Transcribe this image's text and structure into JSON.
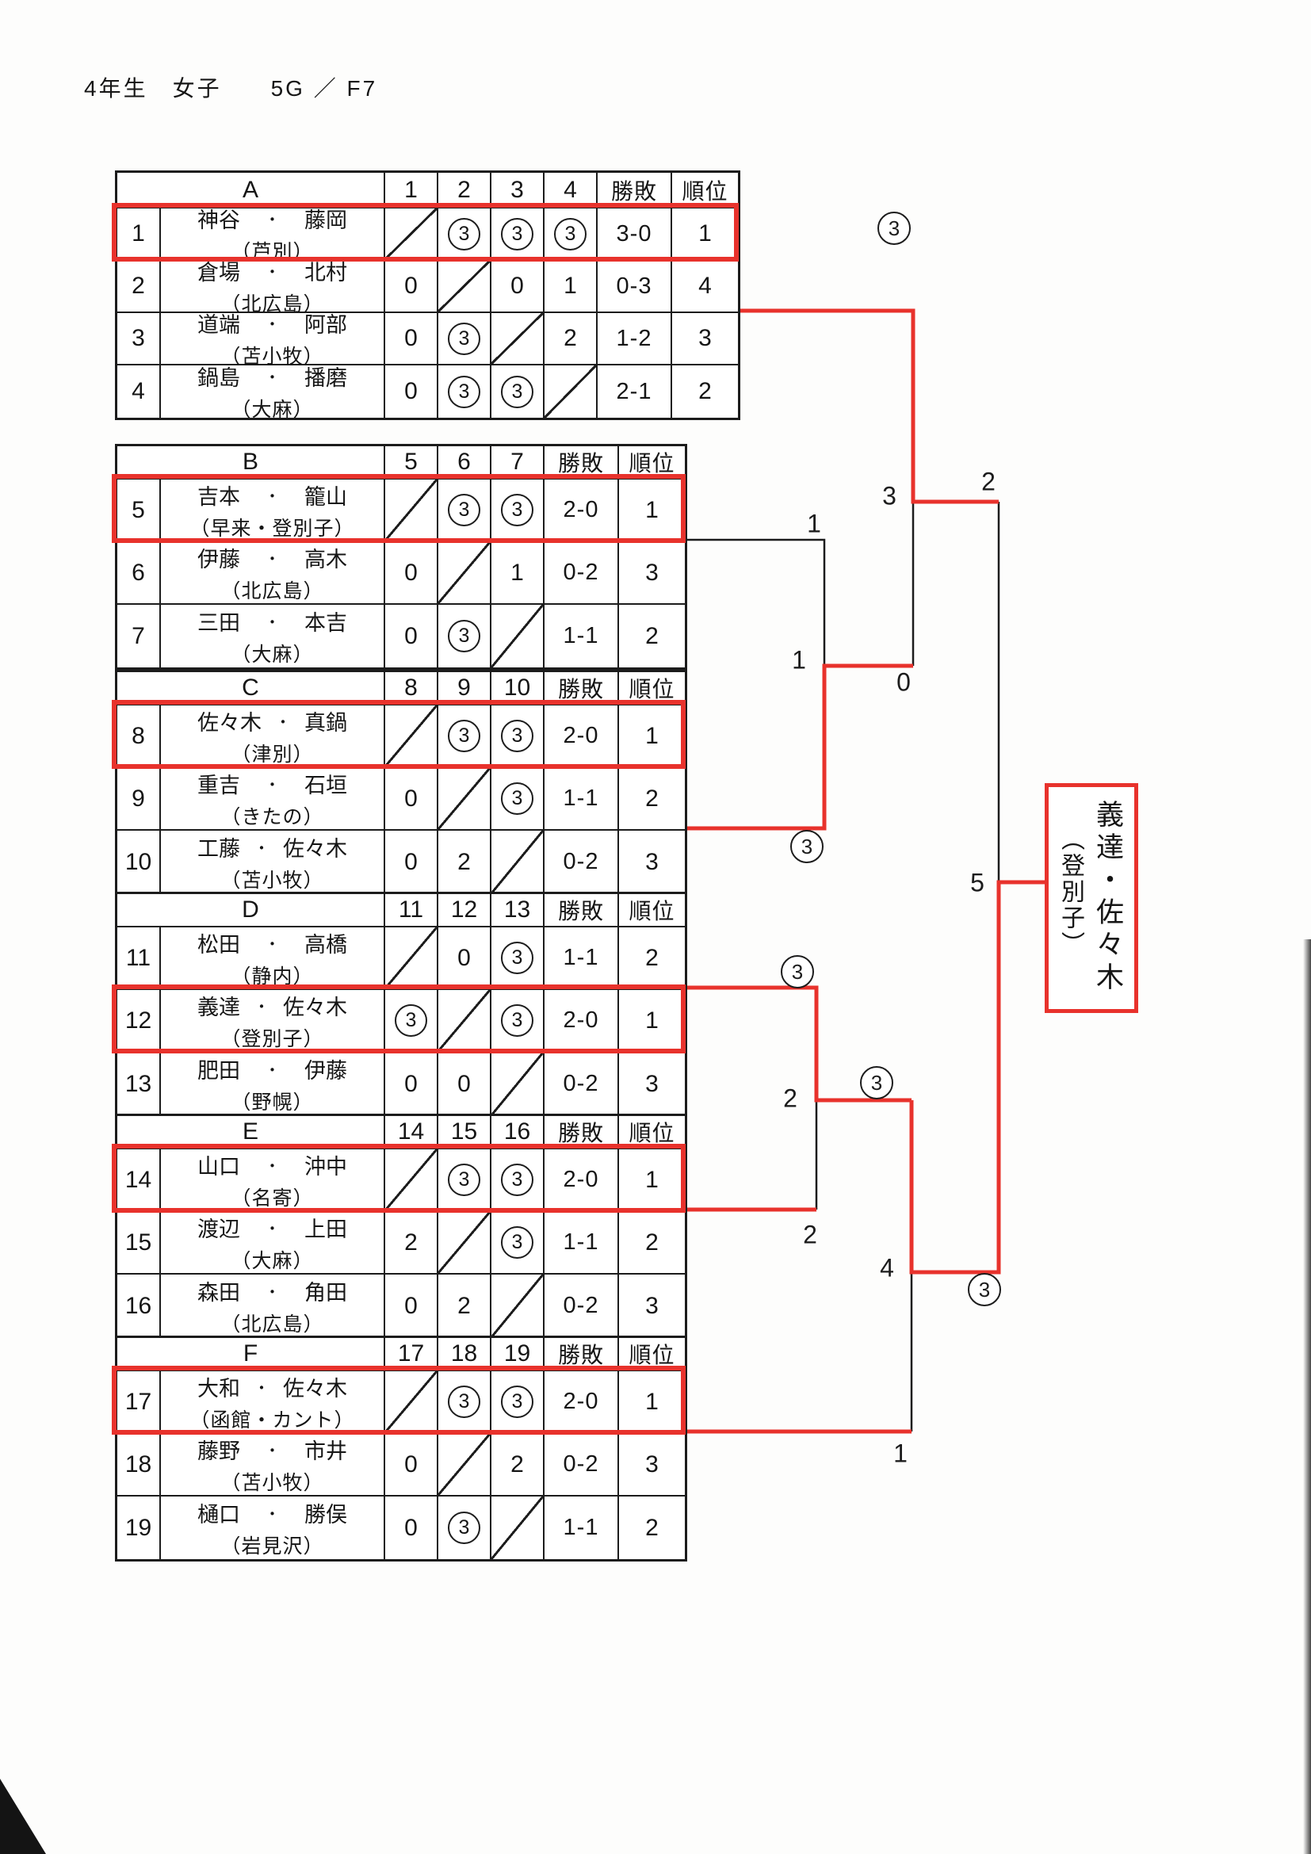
{
  "title": "4年生　女子　　5G ／ F7",
  "headers": {
    "win": "勝敗",
    "rank": "順位"
  },
  "groups": [
    {
      "name": "A",
      "cols": [
        "1",
        "2",
        "3",
        "4"
      ],
      "rows": [
        {
          "no": "1",
          "p1": "神谷",
          "p2": "藤岡",
          "club": "（芦別）",
          "results": [
            "",
            "③",
            "③",
            "③"
          ],
          "win": "3-0",
          "rank": "1",
          "first": true
        },
        {
          "no": "2",
          "p1": "倉場",
          "p2": "北村",
          "club": "（北広島）",
          "results": [
            "0",
            "",
            "0",
            "1"
          ],
          "win": "0-3",
          "rank": "4"
        },
        {
          "no": "3",
          "p1": "道端",
          "p2": "阿部",
          "club": "（苫小牧）",
          "results": [
            "0",
            "③",
            "",
            "2"
          ],
          "win": "1-2",
          "rank": "3"
        },
        {
          "no": "4",
          "p1": "鍋島",
          "p2": "播磨",
          "club": "（大麻）",
          "results": [
            "0",
            "③",
            "③",
            ""
          ],
          "win": "2-1",
          "rank": "2"
        }
      ]
    },
    {
      "name": "B",
      "cols": [
        "5",
        "6",
        "7"
      ],
      "rows": [
        {
          "no": "5",
          "p1": "吉本",
          "p2": "籠山",
          "club": "（早来・登別子）",
          "results": [
            "",
            "③",
            "③"
          ],
          "win": "2-0",
          "rank": "1",
          "first": true
        },
        {
          "no": "6",
          "p1": "伊藤",
          "p2": "高木",
          "club": "（北広島）",
          "results": [
            "0",
            "",
            "1"
          ],
          "win": "0-2",
          "rank": "3"
        },
        {
          "no": "7",
          "p1": "三田",
          "p2": "本吉",
          "club": "（大麻）",
          "results": [
            "0",
            "③",
            ""
          ],
          "win": "1-1",
          "rank": "2"
        }
      ]
    },
    {
      "name": "C",
      "cols": [
        "8",
        "9",
        "10"
      ],
      "rows": [
        {
          "no": "8",
          "p1": "佐々木",
          "p2": "真鍋",
          "club": "（津別）",
          "results": [
            "",
            "③",
            "③"
          ],
          "win": "2-0",
          "rank": "1",
          "first": true
        },
        {
          "no": "9",
          "p1": "重吉",
          "p2": "石垣",
          "club": "（きたの）",
          "results": [
            "0",
            "",
            "③"
          ],
          "win": "1-1",
          "rank": "2"
        },
        {
          "no": "10",
          "p1": "工藤",
          "p2": "佐々木",
          "club": "（苫小牧）",
          "results": [
            "0",
            "2",
            ""
          ],
          "win": "0-2",
          "rank": "3"
        }
      ]
    },
    {
      "name": "D",
      "cols": [
        "11",
        "12",
        "13"
      ],
      "rows": [
        {
          "no": "11",
          "p1": "松田",
          "p2": "高橋",
          "club": "（静内）",
          "results": [
            "",
            "0",
            "③"
          ],
          "win": "1-1",
          "rank": "2"
        },
        {
          "no": "12",
          "p1": "義達",
          "p2": "佐々木",
          "club": "（登別子）",
          "results": [
            "③",
            "",
            "③"
          ],
          "win": "2-0",
          "rank": "1",
          "first": true
        },
        {
          "no": "13",
          "p1": "肥田",
          "p2": "伊藤",
          "club": "（野幌）",
          "results": [
            "0",
            "0",
            ""
          ],
          "win": "0-2",
          "rank": "3"
        }
      ]
    },
    {
      "name": "E",
      "cols": [
        "14",
        "15",
        "16"
      ],
      "rows": [
        {
          "no": "14",
          "p1": "山口",
          "p2": "沖中",
          "club": "（名寄）",
          "results": [
            "",
            "③",
            "③"
          ],
          "win": "2-0",
          "rank": "1",
          "first": true
        },
        {
          "no": "15",
          "p1": "渡辺",
          "p2": "上田",
          "club": "（大麻）",
          "results": [
            "2",
            "",
            "③"
          ],
          "win": "1-1",
          "rank": "2"
        },
        {
          "no": "16",
          "p1": "森田",
          "p2": "角田",
          "club": "（北広島）",
          "results": [
            "0",
            "2",
            ""
          ],
          "win": "0-2",
          "rank": "3"
        }
      ]
    },
    {
      "name": "F",
      "cols": [
        "17",
        "18",
        "19"
      ],
      "rows": [
        {
          "no": "17",
          "p1": "大和",
          "p2": "佐々木",
          "club": "（函館・カント）",
          "results": [
            "",
            "③",
            "③"
          ],
          "win": "2-0",
          "rank": "1",
          "first": true
        },
        {
          "no": "18",
          "p1": "藤野",
          "p2": "市井",
          "club": "（苫小牧）",
          "results": [
            "0",
            "",
            "2"
          ],
          "win": "0-2",
          "rank": "3"
        },
        {
          "no": "19",
          "p1": "樋口",
          "p2": "勝俣",
          "club": "（岩見沢）",
          "results": [
            "0",
            "③",
            ""
          ],
          "win": "1-1",
          "rank": "2"
        }
      ]
    }
  ],
  "bracket": {
    "labels": [
      {
        "id": "a1-sf-score",
        "text": "3",
        "circled": true
      },
      {
        "id": "match3-no",
        "text": "3",
        "circled": false
      },
      {
        "id": "a1-final-score",
        "text": "2",
        "circled": false
      },
      {
        "id": "b1-qf-score",
        "text": "1",
        "circled": false
      },
      {
        "id": "match1-no",
        "text": "1",
        "circled": false
      },
      {
        "id": "c1-sf-score",
        "text": "0",
        "circled": false
      },
      {
        "id": "c1-qf-score",
        "text": "3",
        "circled": true
      },
      {
        "id": "d1-qf-score",
        "text": "3",
        "circled": true
      },
      {
        "id": "match2-no",
        "text": "2",
        "circled": false
      },
      {
        "id": "d1-sf-score",
        "text": "3",
        "circled": true
      },
      {
        "id": "e1-qf-score",
        "text": "2",
        "circled": false
      },
      {
        "id": "match4-no",
        "text": "4",
        "circled": false
      },
      {
        "id": "d1-final-score",
        "text": "3",
        "circled": true
      },
      {
        "id": "f1-sf-score",
        "text": "1",
        "circled": false
      },
      {
        "id": "match5-no",
        "text": "5",
        "circled": false
      }
    ],
    "champion": {
      "names": "義達・佐々木",
      "club": "（登別子）"
    }
  }
}
